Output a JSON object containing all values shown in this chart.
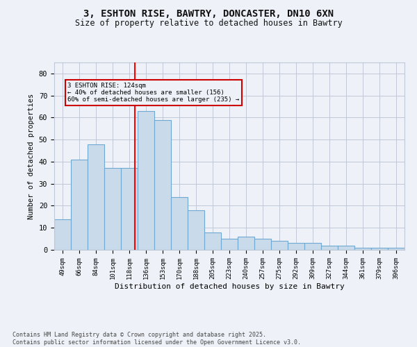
{
  "title_line1": "3, ESHTON RISE, BAWTRY, DONCASTER, DN10 6XN",
  "title_line2": "Size of property relative to detached houses in Bawtry",
  "xlabel": "Distribution of detached houses by size in Bawtry",
  "ylabel": "Number of detached properties",
  "categories": [
    "49sqm",
    "66sqm",
    "84sqm",
    "101sqm",
    "118sqm",
    "136sqm",
    "153sqm",
    "170sqm",
    "188sqm",
    "205sqm",
    "223sqm",
    "240sqm",
    "257sqm",
    "275sqm",
    "292sqm",
    "309sqm",
    "327sqm",
    "344sqm",
    "361sqm",
    "379sqm",
    "396sqm"
  ],
  "values": [
    14,
    41,
    48,
    37,
    37,
    63,
    59,
    24,
    18,
    8,
    5,
    6,
    5,
    4,
    3,
    3,
    2,
    2,
    1,
    1,
    1
  ],
  "bar_color": "#c9daea",
  "bar_edge_color": "#6fa8d0",
  "grid_color": "#c0c8d8",
  "bg_color": "#eef2f8",
  "annotation_text": "3 ESHTON RISE: 124sqm\n← 40% of detached houses are smaller (156)\n60% of semi-detached houses are larger (235) →",
  "annotation_box_color": "#cc0000",
  "ylim": [
    0,
    85
  ],
  "yticks": [
    0,
    10,
    20,
    30,
    40,
    50,
    60,
    70,
    80
  ],
  "footer_line1": "Contains HM Land Registry data © Crown copyright and database right 2025.",
  "footer_line2": "Contains public sector information licensed under the Open Government Licence v3.0."
}
